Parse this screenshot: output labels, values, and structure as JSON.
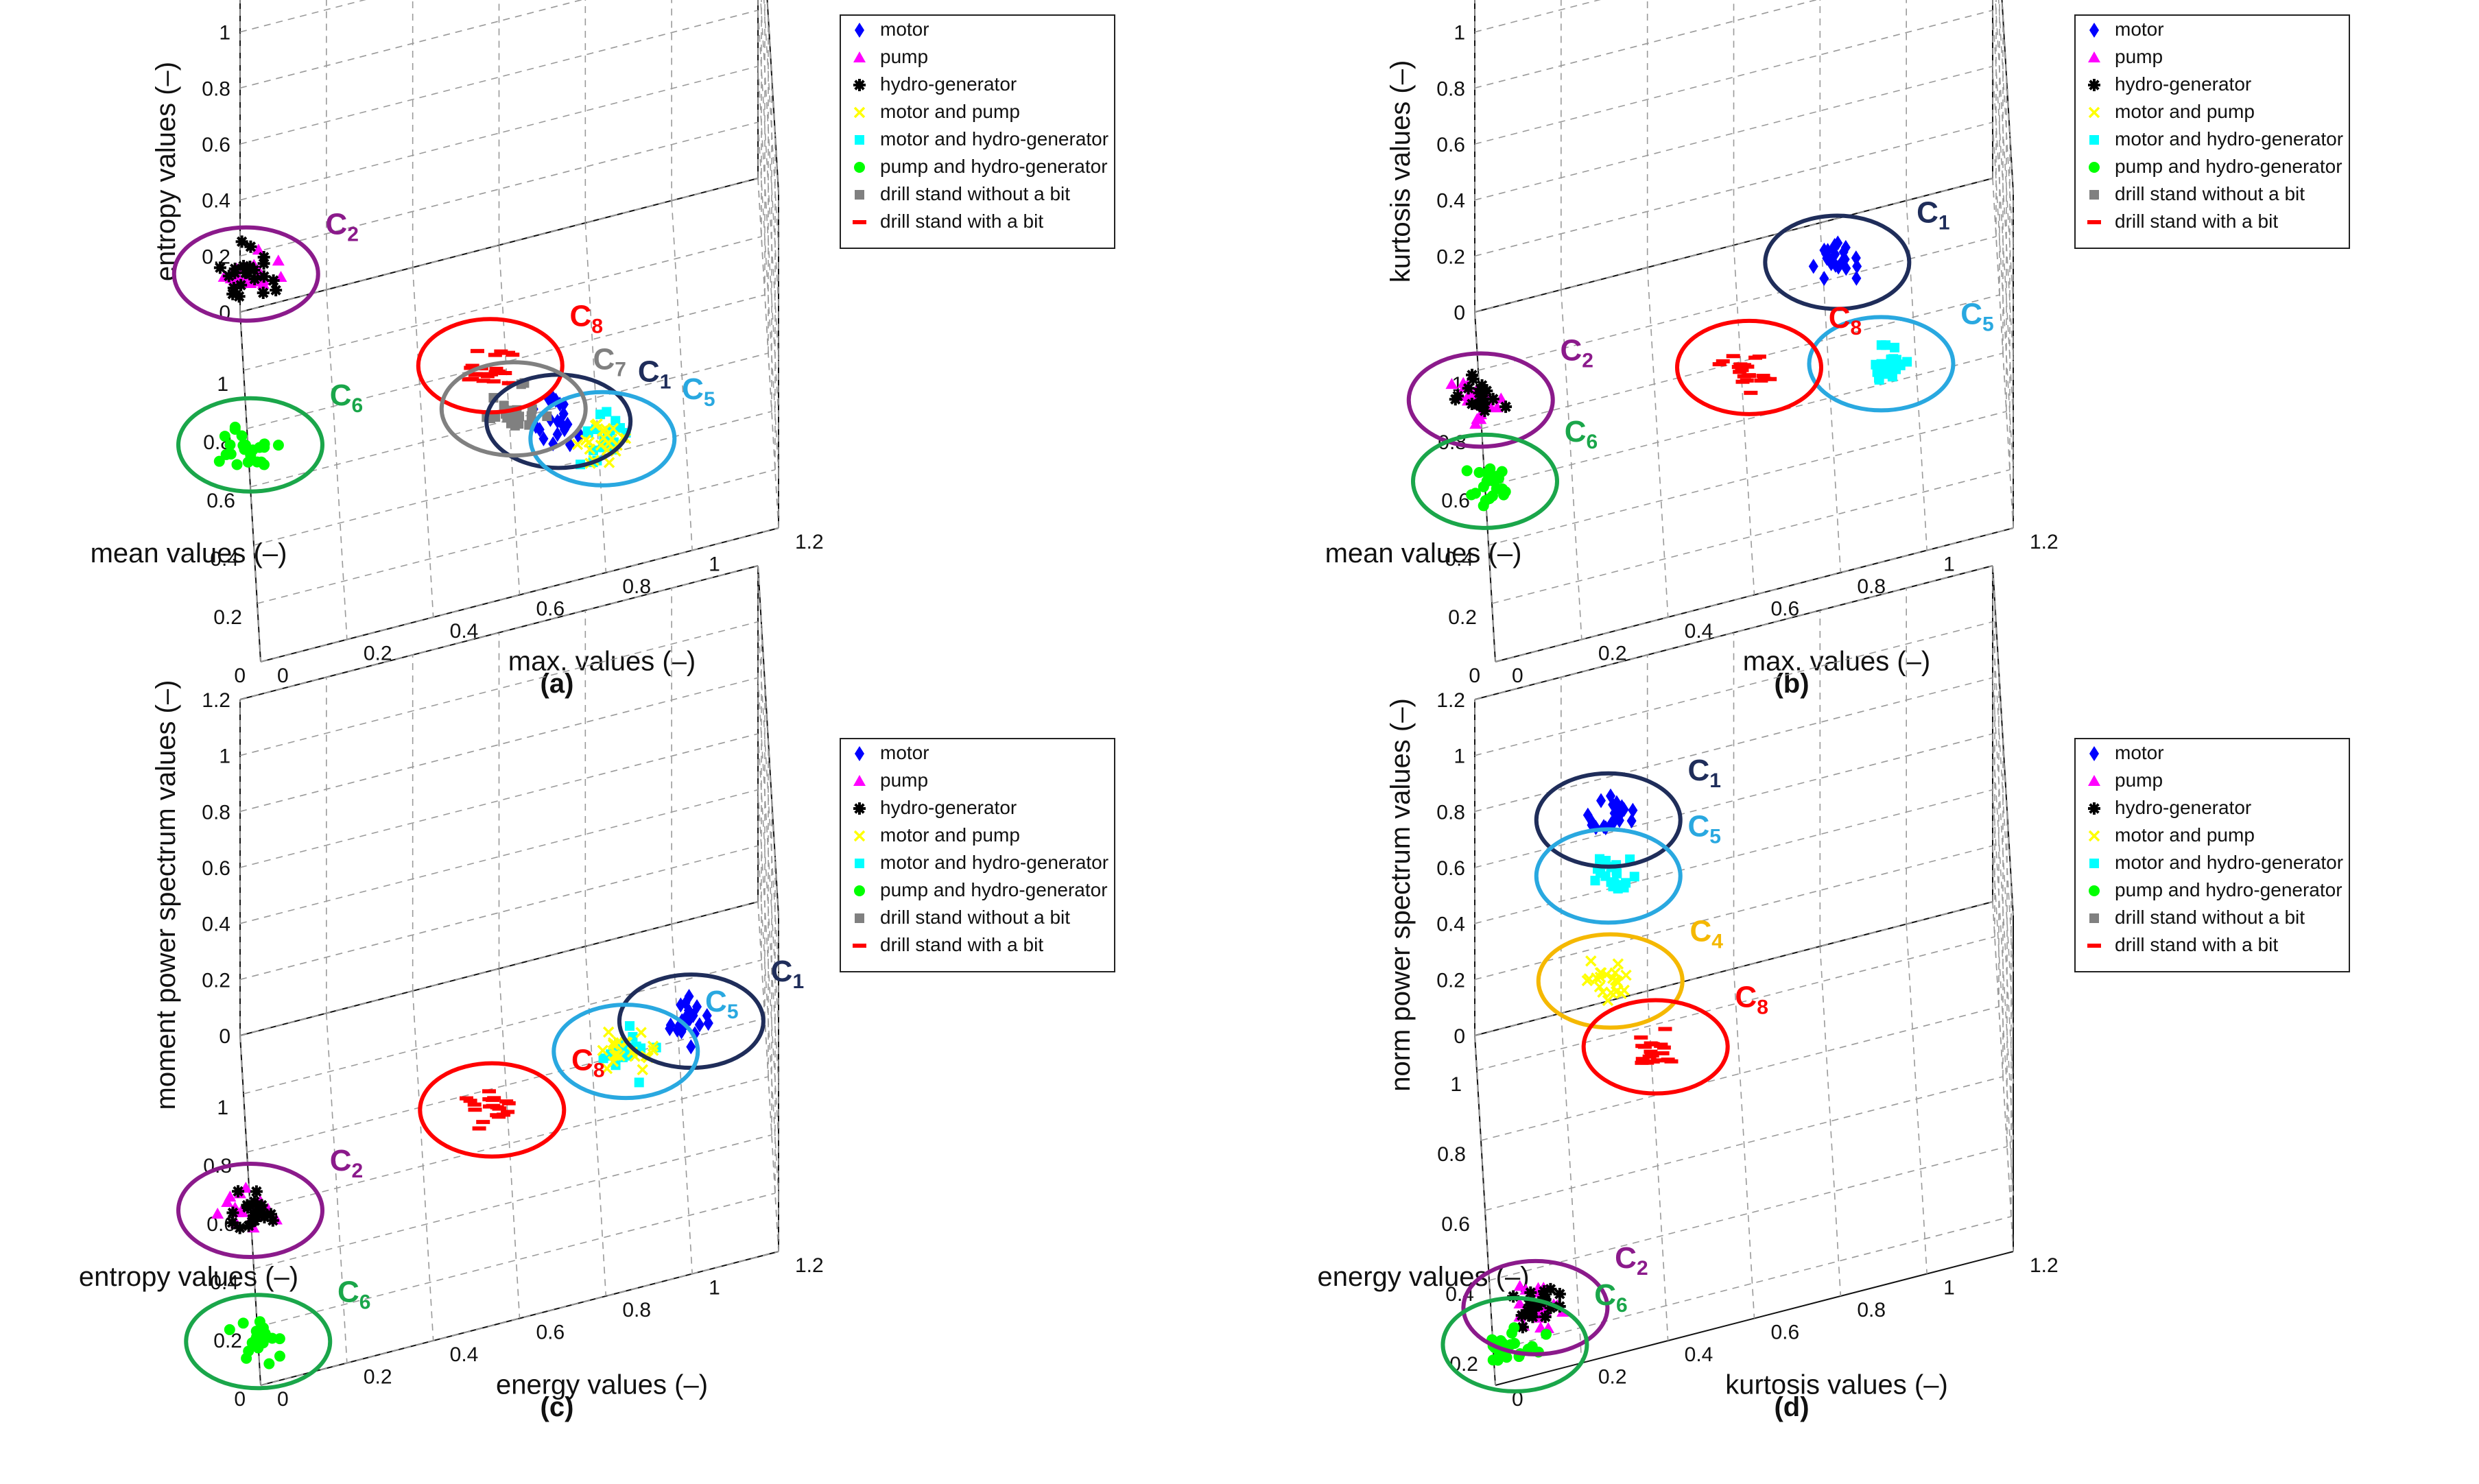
{
  "legend_entries": [
    {
      "label": "motor",
      "color": "#0000ff",
      "marker": "diamond"
    },
    {
      "label": "pump",
      "color": "#ff00ff",
      "marker": "triangle"
    },
    {
      "label": "hydro-generator",
      "color": "#000000",
      "marker": "hexagram"
    },
    {
      "label": "motor and pump",
      "color": "#ffff00",
      "marker": "x"
    },
    {
      "label": "motor and hydro-generator",
      "color": "#00ffff",
      "marker": "square"
    },
    {
      "label": "pump and hydro-generator",
      "color": "#00ff00",
      "marker": "circle"
    },
    {
      "label": "drill stand without a bit",
      "color": "#808080",
      "marker": "square"
    },
    {
      "label": "drill stand with a bit",
      "color": "#ff0000",
      "marker": "dash"
    }
  ],
  "chart_data": [
    {
      "type": "scatter",
      "panel_label": "(a)",
      "xlabel": "mean values (–)",
      "ylabel": "max. values (–)",
      "zlabel": "entropy values (–)",
      "x_ticks": [
        "0",
        "0.2",
        "0.4",
        "0.6",
        "0.8",
        "1"
      ],
      "y_ticks": [
        "0",
        "0.2",
        "0.4",
        "0.6",
        "0.8",
        "1",
        "1.2"
      ],
      "z_ticks": [
        "0",
        "0.2",
        "0.4",
        "0.6",
        "0.8",
        "1",
        "1.2"
      ],
      "xlim": [
        0,
        1.2
      ],
      "ylim": [
        0,
        1.2
      ],
      "zlim": [
        0,
        1.2
      ],
      "grid": true,
      "legend_position": "top-right",
      "clusters": [
        {
          "label": "C2",
          "color": "#8b1a8b",
          "members": [
            "pump",
            "hydro-generator"
          ],
          "center": [
            0.85,
            0.0,
            0.5
          ]
        },
        {
          "label": "C6",
          "color": "#1aa64a",
          "members": [
            "pump and hydro-generator"
          ],
          "center": [
            0.6,
            0.0,
            0.15
          ]
        },
        {
          "label": "C8",
          "color": "#ff0000",
          "members": [
            "drill stand with a bit"
          ],
          "center": [
            0.45,
            0.55,
            0.37
          ]
        },
        {
          "label": "C1",
          "color": "#1f2d5a",
          "members": [
            "motor"
          ],
          "center": [
            0.25,
            0.7,
            0.32
          ]
        },
        {
          "label": "C5",
          "color": "#29a8e0",
          "members": [
            "motor and hydro-generator",
            "motor and pump"
          ],
          "center": [
            0.2,
            0.8,
            0.27
          ]
        },
        {
          "label": "C7",
          "color": "#808080",
          "members": [
            "drill stand without a bit"
          ],
          "center": [
            0.35,
            0.6,
            0.3
          ]
        }
      ]
    },
    {
      "type": "scatter",
      "panel_label": "(b)",
      "xlabel": "mean values (–)",
      "ylabel": "max. values (–)",
      "zlabel": "kurtosis values (–)",
      "x_ticks": [
        "0",
        "0.2",
        "0.4",
        "0.6",
        "0.8",
        "1"
      ],
      "y_ticks": [
        "0",
        "0.2",
        "0.4",
        "0.6",
        "0.8",
        "1",
        "1.2"
      ],
      "z_ticks": [
        "0",
        "0.2",
        "0.4",
        "0.6",
        "0.8",
        "1",
        "1.2"
      ],
      "xlim": [
        0,
        1.2
      ],
      "ylim": [
        0,
        1.2
      ],
      "zlim": [
        0,
        1.2
      ],
      "grid": true,
      "legend_position": "top-right",
      "clusters": [
        {
          "label": "C1",
          "color": "#1f2d5a",
          "members": [
            "motor"
          ],
          "center": [
            0.2,
            0.8,
            0.9
          ]
        },
        {
          "label": "C5",
          "color": "#29a8e0",
          "members": [
            "motor and hydro-generator"
          ],
          "center": [
            0.15,
            0.9,
            0.55
          ]
        },
        {
          "label": "C8",
          "color": "#ff0000",
          "members": [
            "drill stand with a bit"
          ],
          "center": [
            0.3,
            0.6,
            0.5
          ]
        },
        {
          "label": "C2",
          "color": "#8b1a8b",
          "members": [
            "pump",
            "hydro-generator"
          ],
          "center": [
            0.85,
            0.0,
            0.05
          ]
        },
        {
          "label": "C6",
          "color": "#1aa64a",
          "members": [
            "pump and hydro-generator"
          ],
          "center": [
            0.6,
            0.0,
            0.02
          ]
        }
      ]
    },
    {
      "type": "scatter",
      "panel_label": "(c)",
      "xlabel": "entropy values (–)",
      "ylabel": "energy values (–)",
      "zlabel": "moment power spectrum values (–)",
      "x_ticks": [
        "0",
        "0.2",
        "0.4",
        "0.6",
        "0.8",
        "1"
      ],
      "y_ticks": [
        "0",
        "0.2",
        "0.4",
        "0.6",
        "0.8",
        "1",
        "1.2"
      ],
      "z_ticks": [
        "0",
        "0.2",
        "0.4",
        "0.6",
        "0.8",
        "1",
        "1.2"
      ],
      "xlim": [
        0,
        1.2
      ],
      "ylim": [
        0,
        1.2
      ],
      "zlim": [
        0,
        1.2
      ],
      "grid": true,
      "legend_position": "top-right",
      "clusters": [
        {
          "label": "C1",
          "color": "#1f2d5a",
          "members": [
            "motor"
          ],
          "center": [
            0.05,
            1.0,
            0.85
          ]
        },
        {
          "label": "C5",
          "color": "#29a8e0",
          "members": [
            "motor and hydro-generator",
            "motor and pump"
          ],
          "center": [
            0.1,
            0.85,
            0.75
          ]
        },
        {
          "label": "C8",
          "color": "#ff0000",
          "members": [
            "drill stand with a bit"
          ],
          "center": [
            0.35,
            0.55,
            0.4
          ]
        },
        {
          "label": "C2",
          "color": "#8b1a8b",
          "members": [
            "pump",
            "hydro-generator"
          ],
          "center": [
            0.6,
            0.0,
            0.0
          ]
        },
        {
          "label": "C6",
          "color": "#1aa64a",
          "members": [
            "pump and hydro-generator"
          ],
          "center": [
            0.15,
            0.0,
            0.0
          ]
        }
      ]
    },
    {
      "type": "scatter",
      "panel_label": "(d)",
      "xlabel": "energy values (–)",
      "ylabel": "kurtosis values (–)",
      "zlabel": "norm power spectrum values (–)",
      "x_ticks": [
        "0.2",
        "0.4",
        "0.6",
        "0.8",
        "1"
      ],
      "y_ticks": [
        "0",
        "0.2",
        "0.4",
        "0.6",
        "0.8",
        "1",
        "1.2"
      ],
      "z_ticks": [
        "0",
        "0.2",
        "0.4",
        "0.6",
        "0.8",
        "1",
        "1.2"
      ],
      "xlim": [
        0.1,
        1.1
      ],
      "ylim": [
        0,
        1.2
      ],
      "zlim": [
        0,
        1.2
      ],
      "grid": true,
      "legend_position": "top-right",
      "clusters": [
        {
          "label": "C1",
          "color": "#1f2d5a",
          "members": [
            "motor"
          ],
          "center": [
            0.9,
            0.3,
            0.9
          ]
        },
        {
          "label": "C5",
          "color": "#29a8e0",
          "members": [
            "motor and hydro-generator"
          ],
          "center": [
            0.9,
            0.3,
            0.7
          ]
        },
        {
          "label": "C4",
          "color": "#f5b800",
          "members": [
            "motor and pump"
          ],
          "center": [
            0.8,
            0.3,
            0.45
          ]
        },
        {
          "label": "C8",
          "color": "#ff0000",
          "members": [
            "drill stand with a bit"
          ],
          "center": [
            0.7,
            0.4,
            0.3
          ]
        },
        {
          "label": "C2",
          "color": "#8b1a8b",
          "members": [
            "pump",
            "hydro-generator"
          ],
          "center": [
            0.25,
            0.1,
            0.05
          ]
        },
        {
          "label": "C6",
          "color": "#1aa64a",
          "members": [
            "pump and hydro-generator"
          ],
          "center": [
            0.2,
            0.05,
            0.0
          ]
        }
      ]
    }
  ]
}
